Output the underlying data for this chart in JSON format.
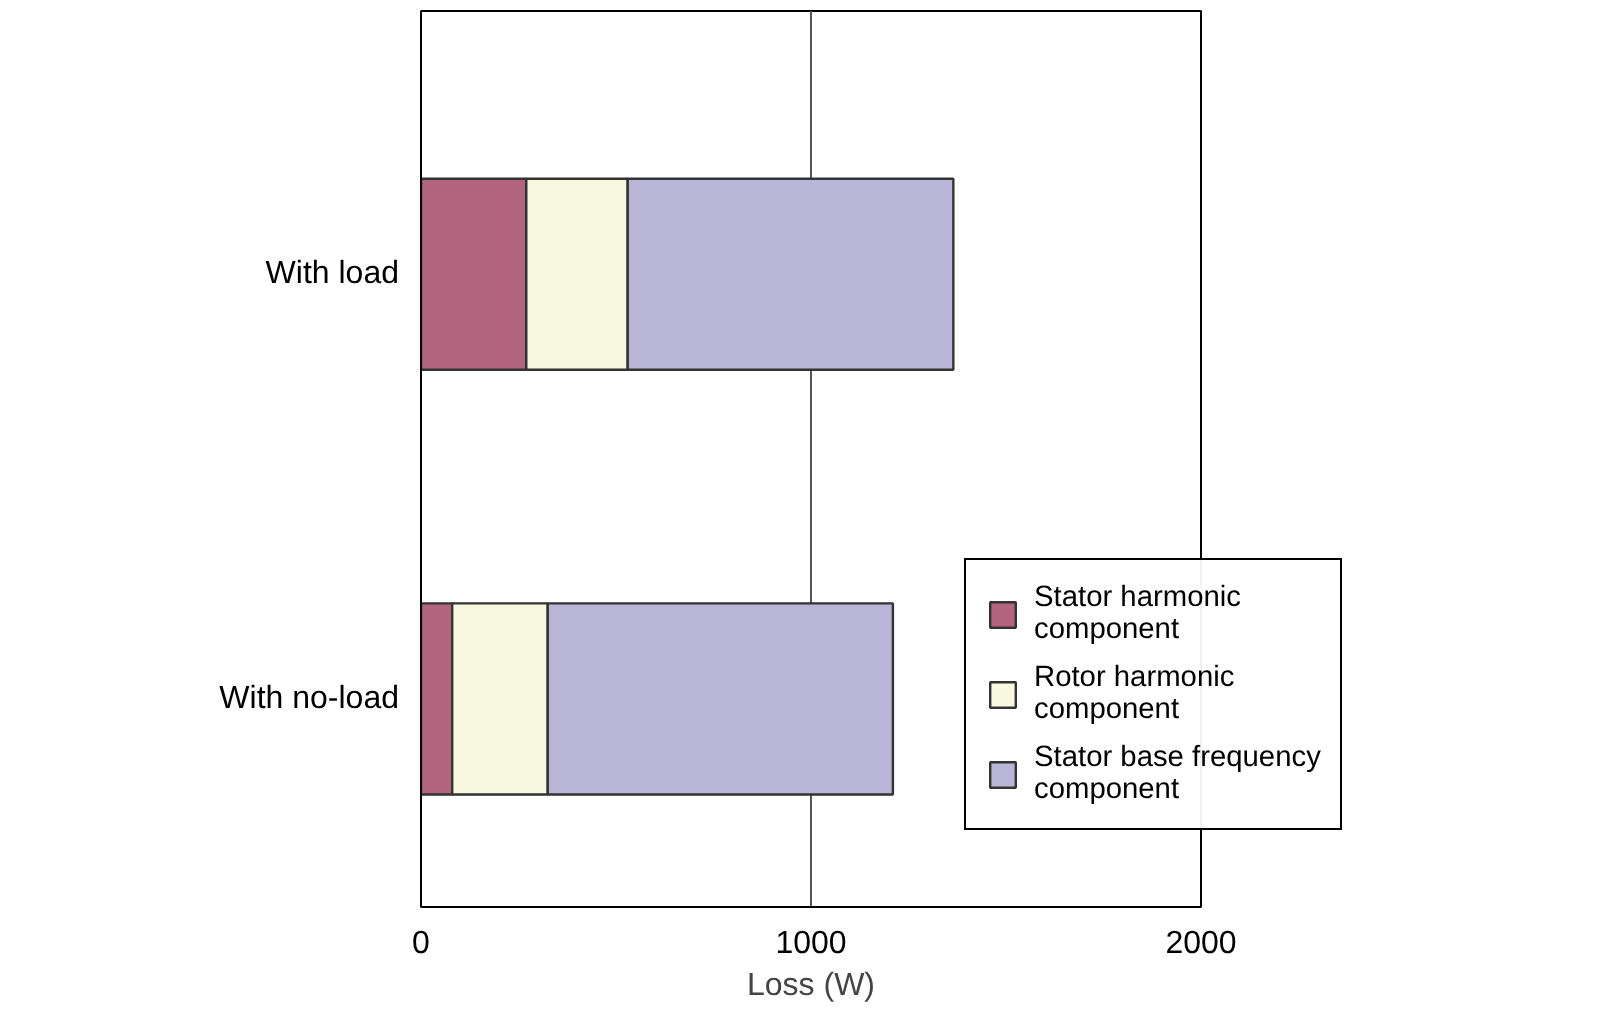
{
  "chart_data": {
    "type": "bar",
    "orientation": "horizontal",
    "stacked": true,
    "xlabel": "Loss (W)",
    "categories": [
      "With load",
      "With no-load"
    ],
    "series": [
      {
        "name": "Stator harmonic component",
        "color": "#b3647e",
        "values": [
          270,
          80
        ]
      },
      {
        "name": "Rotor harmonic component",
        "color": "#f8f8e0",
        "values": [
          260,
          245
        ]
      },
      {
        "name": "Stator base frequency component",
        "color": "#b9b5d7",
        "values": [
          835,
          885
        ]
      }
    ],
    "xlim": [
      0,
      2000
    ],
    "xticks": [
      0,
      1000,
      2000
    ],
    "grid": "x",
    "legend": "bottom right"
  }
}
